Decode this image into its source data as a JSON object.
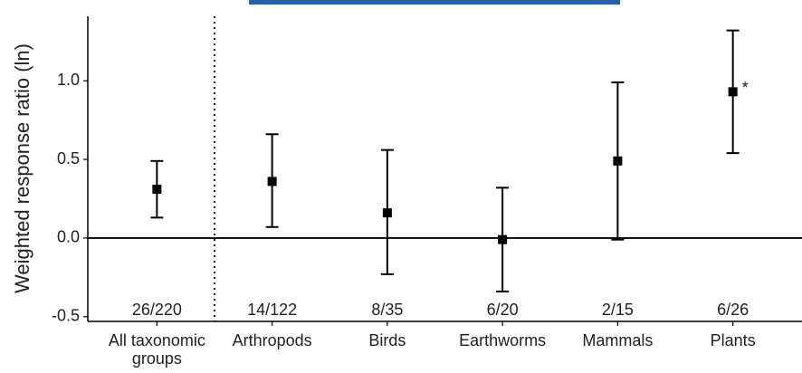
{
  "chart_data": {
    "type": "errorbar",
    "y_label": "Weighted response ratio (ln)",
    "categories": [
      "All taxonomic groups",
      "Arthropods",
      "Birds",
      "Earthworms",
      "Mammals",
      "Plants"
    ],
    "values": [
      0.31,
      0.36,
      0.16,
      -0.01,
      0.49,
      0.93
    ],
    "lower": [
      0.13,
      0.07,
      -0.23,
      -0.34,
      -0.01,
      0.54
    ],
    "upper": [
      0.49,
      0.66,
      0.56,
      0.32,
      0.99,
      1.32
    ],
    "sample_sizes": [
      "26/220",
      "14/122",
      "8/35",
      "6/20",
      "2/15",
      "6/26"
    ],
    "annotations": [
      null,
      null,
      null,
      null,
      null,
      "*"
    ],
    "color": "#000000",
    "ylim": [
      -0.53,
      1.41
    ],
    "yticks": [
      -0.5,
      {
        "value": 0,
        "label": "0.0"
      },
      0.5,
      {
        "value": 1,
        "label": "1.0"
      }
    ]
  }
}
